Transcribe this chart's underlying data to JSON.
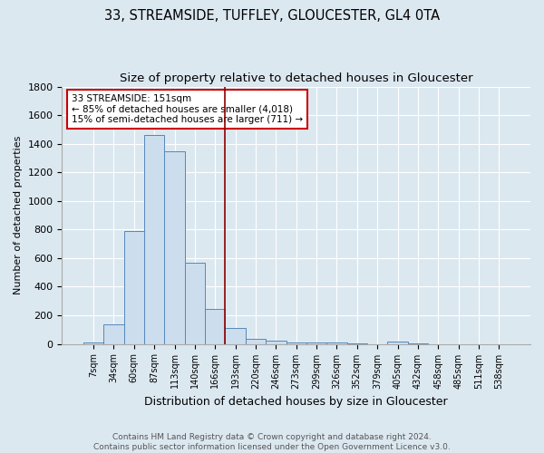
{
  "title": "33, STREAMSIDE, TUFFLEY, GLOUCESTER, GL4 0TA",
  "subtitle": "Size of property relative to detached houses in Gloucester",
  "xlabel": "Distribution of detached houses by size in Gloucester",
  "ylabel": "Number of detached properties",
  "categories": [
    "7sqm",
    "34sqm",
    "60sqm",
    "87sqm",
    "113sqm",
    "140sqm",
    "166sqm",
    "193sqm",
    "220sqm",
    "246sqm",
    "273sqm",
    "299sqm",
    "326sqm",
    "352sqm",
    "379sqm",
    "405sqm",
    "432sqm",
    "458sqm",
    "485sqm",
    "511sqm",
    "538sqm"
  ],
  "values": [
    8,
    135,
    790,
    1460,
    1350,
    570,
    245,
    110,
    35,
    22,
    12,
    10,
    8,
    2,
    0,
    18,
    2,
    0,
    0,
    0,
    0
  ],
  "bar_color": "#ccdded",
  "bar_edge_color": "#5588bb",
  "vline_x": 6.5,
  "vline_color": "#8b0000",
  "annotation_text": "33 STREAMSIDE: 151sqm\n← 85% of detached houses are smaller (4,018)\n15% of semi-detached houses are larger (711) →",
  "annotation_box_color": "#ffffff",
  "annotation_box_edge": "#cc0000",
  "ylim": [
    0,
    1800
  ],
  "yticks": [
    0,
    200,
    400,
    600,
    800,
    1000,
    1200,
    1400,
    1600,
    1800
  ],
  "footer": "Contains HM Land Registry data © Crown copyright and database right 2024.\nContains public sector information licensed under the Open Government Licence v3.0.",
  "background_color": "#dce8f0",
  "plot_bg_color": "#dce8f0",
  "title_fontsize": 10.5,
  "subtitle_fontsize": 9.5,
  "xlabel_fontsize": 9,
  "ylabel_fontsize": 8
}
